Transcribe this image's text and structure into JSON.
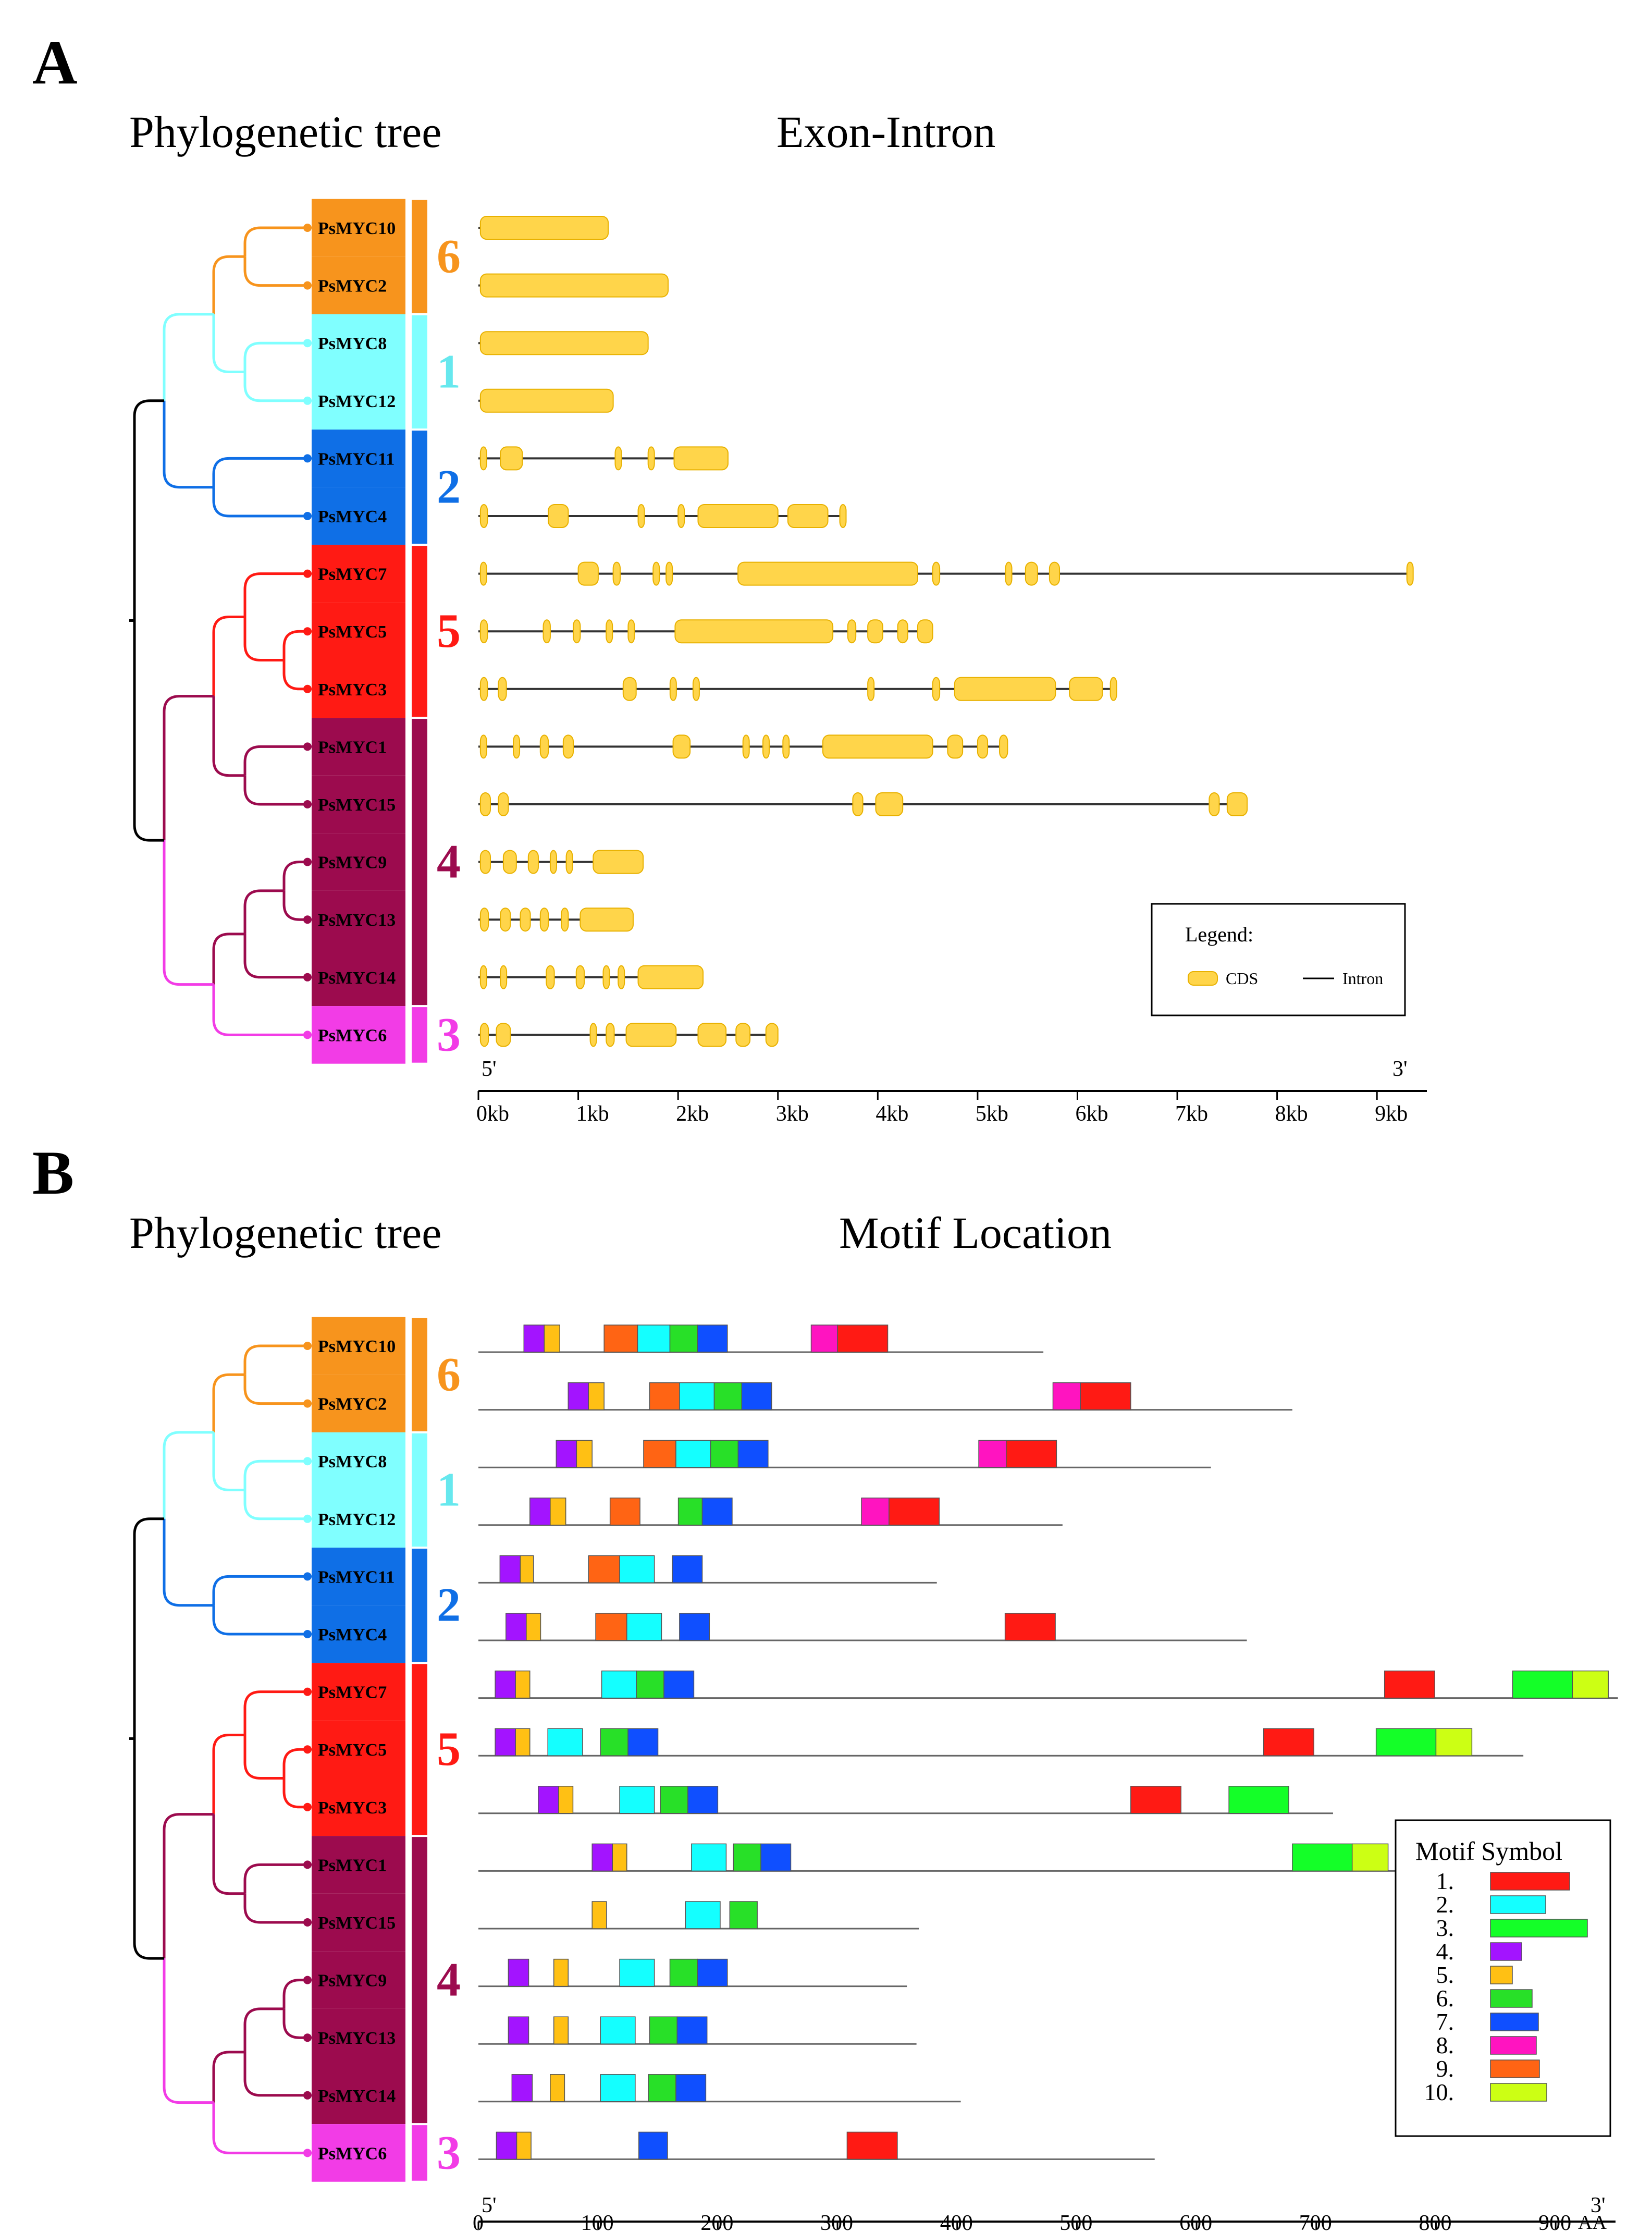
{
  "panel_a": {
    "letter": "A",
    "left_title": "Phylogenetic tree",
    "right_title": "Exon-Intron",
    "legend_title": "Legend:",
    "legend_cds": "CDS",
    "legend_intron": "Intron",
    "end5": "5'",
    "end3": "3'",
    "axis_ticks": [
      "0kb",
      "1kb",
      "2kb",
      "3kb",
      "4kb",
      "5kb",
      "6kb",
      "7kb",
      "8kb",
      "9kb"
    ],
    "axis_max_kb": 9.5
  },
  "panel_b": {
    "letter": "B",
    "left_title": "Phylogenetic tree",
    "right_title": "Motif Location",
    "legend_title": "Motif Symbol",
    "end5": "5'",
    "end3": "3'",
    "axis_unit": "AA",
    "axis_ticks": [
      "0",
      "100",
      "200",
      "300",
      "400",
      "500",
      "600",
      "700",
      "800",
      "900"
    ],
    "axis_max_aa": 950
  },
  "genes": [
    "PsMYC10",
    "PsMYC2",
    "PsMYC8",
    "PsMYC12",
    "PsMYC11",
    "PsMYC4",
    "PsMYC7",
    "PsMYC5",
    "PsMYC3",
    "PsMYC1",
    "PsMYC15",
    "PsMYC9",
    "PsMYC13",
    "PsMYC14",
    "PsMYC6"
  ],
  "groups": [
    {
      "label": "6",
      "rows": [
        0,
        1
      ],
      "color": "#f7941d"
    },
    {
      "label": "1",
      "rows": [
        2,
        3
      ],
      "color": "#80ffff",
      "label_color": "#66e8ee"
    },
    {
      "label": "2",
      "rows": [
        4,
        5
      ],
      "color": "#0f6fe6"
    },
    {
      "label": "5",
      "rows": [
        6,
        8
      ],
      "color": "#ff1a14"
    },
    {
      "label": "4",
      "rows": [
        9,
        13
      ],
      "color": "#9c0b4e"
    },
    {
      "label": "3",
      "rows": [
        14,
        14
      ],
      "color": "#f23ce6"
    }
  ],
  "colors": {
    "cds": "#ffd54a",
    "cds_edge": "#e8b100",
    "intron": "#333333",
    "tree_black": "#000000"
  },
  "gene_structures": [
    {
      "gene": "PsMYC10",
      "length": 1.3,
      "exons": [
        [
          0.02,
          1.3
        ]
      ]
    },
    {
      "gene": "PsMYC2",
      "length": 1.9,
      "exons": [
        [
          0.02,
          1.9
        ]
      ]
    },
    {
      "gene": "PsMYC8",
      "length": 1.7,
      "exons": [
        [
          0.02,
          1.7
        ]
      ]
    },
    {
      "gene": "PsMYC12",
      "length": 1.35,
      "exons": [
        [
          0.02,
          1.35
        ]
      ]
    },
    {
      "gene": "PsMYC11",
      "length": 2.5,
      "exons": [
        [
          0.02,
          0.08
        ],
        [
          0.22,
          0.44
        ],
        [
          1.37,
          1.42
        ],
        [
          1.7,
          1.75
        ],
        [
          1.96,
          2.5
        ]
      ]
    },
    {
      "gene": "PsMYC4",
      "length": 3.65,
      "exons": [
        [
          0.02,
          0.09
        ],
        [
          0.7,
          0.9
        ],
        [
          1.6,
          1.66
        ],
        [
          2.0,
          2.05
        ],
        [
          2.2,
          3.0
        ],
        [
          3.1,
          3.5
        ],
        [
          3.62,
          3.65
        ]
      ]
    },
    {
      "gene": "PsMYC7",
      "length": 9.35,
      "exons": [
        [
          0.02,
          0.06
        ],
        [
          1.0,
          1.2
        ],
        [
          1.35,
          1.42
        ],
        [
          1.75,
          1.78
        ],
        [
          1.88,
          1.92
        ],
        [
          2.6,
          4.4
        ],
        [
          4.55,
          4.62
        ],
        [
          5.28,
          5.32
        ],
        [
          5.48,
          5.6
        ],
        [
          5.72,
          5.82
        ],
        [
          9.3,
          9.35
        ]
      ]
    },
    {
      "gene": "PsMYC5",
      "length": 4.55,
      "exons": [
        [
          0.02,
          0.09
        ],
        [
          0.65,
          0.72
        ],
        [
          0.95,
          1.02
        ],
        [
          1.28,
          1.32
        ],
        [
          1.5,
          1.56
        ],
        [
          1.97,
          3.55
        ],
        [
          3.7,
          3.78
        ],
        [
          3.9,
          4.05
        ],
        [
          4.2,
          4.3
        ],
        [
          4.4,
          4.55
        ]
      ]
    },
    {
      "gene": "PsMYC3",
      "length": 6.35,
      "exons": [
        [
          0.02,
          0.09
        ],
        [
          0.2,
          0.28
        ],
        [
          1.45,
          1.58
        ],
        [
          1.92,
          1.97
        ],
        [
          2.15,
          2.2
        ],
        [
          3.9,
          3.95
        ],
        [
          4.55,
          4.62
        ],
        [
          4.77,
          5.78
        ],
        [
          5.92,
          6.25
        ],
        [
          6.33,
          6.35
        ]
      ]
    },
    {
      "gene": "PsMYC1",
      "length": 5.3,
      "exons": [
        [
          0.02,
          0.06
        ],
        [
          0.35,
          0.4
        ],
        [
          0.62,
          0.7
        ],
        [
          0.85,
          0.95
        ],
        [
          1.95,
          2.12
        ],
        [
          2.65,
          2.7
        ],
        [
          2.85,
          2.9
        ],
        [
          3.05,
          3.1
        ],
        [
          3.45,
          4.55
        ],
        [
          4.7,
          4.85
        ],
        [
          5.0,
          5.1
        ],
        [
          5.22,
          5.3
        ]
      ]
    },
    {
      "gene": "PsMYC15",
      "length": 7.7,
      "exons": [
        [
          0.02,
          0.12
        ],
        [
          0.2,
          0.3
        ],
        [
          3.75,
          3.85
        ],
        [
          3.98,
          4.25
        ],
        [
          7.32,
          7.42
        ],
        [
          7.5,
          7.7
        ]
      ]
    },
    {
      "gene": "PsMYC9",
      "length": 1.65,
      "exons": [
        [
          0.02,
          0.12
        ],
        [
          0.25,
          0.38
        ],
        [
          0.5,
          0.6
        ],
        [
          0.72,
          0.78
        ],
        [
          0.88,
          0.94
        ],
        [
          1.15,
          1.65
        ]
      ]
    },
    {
      "gene": "PsMYC13",
      "length": 1.55,
      "exons": [
        [
          0.02,
          0.1
        ],
        [
          0.22,
          0.32
        ],
        [
          0.42,
          0.52
        ],
        [
          0.62,
          0.7
        ],
        [
          0.83,
          0.9
        ],
        [
          1.02,
          1.55
        ]
      ]
    },
    {
      "gene": "PsMYC14",
      "length": 2.25,
      "exons": [
        [
          0.02,
          0.08
        ],
        [
          0.22,
          0.28
        ],
        [
          0.68,
          0.76
        ],
        [
          0.98,
          1.06
        ],
        [
          1.25,
          1.3
        ],
        [
          1.4,
          1.46
        ],
        [
          1.6,
          2.25
        ]
      ]
    },
    {
      "gene": "PsMYC6",
      "length": 3.0,
      "exons": [
        [
          0.02,
          0.1
        ],
        [
          0.18,
          0.32
        ],
        [
          1.12,
          1.18
        ],
        [
          1.28,
          1.36
        ],
        [
          1.48,
          1.98
        ],
        [
          2.2,
          2.48
        ],
        [
          2.58,
          2.72
        ],
        [
          2.88,
          3.0
        ]
      ]
    }
  ],
  "motif_colors": [
    "#ff1a14",
    "#14ffff",
    "#14ff28",
    "#a314ff",
    "#ffc014",
    "#28e028",
    "#0f4fff",
    "#ff14c0",
    "#ff6414",
    "#ccff14"
  ],
  "motif_legend": [
    {
      "label": "1.",
      "motif": 1
    },
    {
      "label": "2.",
      "motif": 2
    },
    {
      "label": "3.",
      "motif": 3
    },
    {
      "label": "4.",
      "motif": 4
    },
    {
      "label": "5.",
      "motif": 5
    },
    {
      "label": "6.",
      "motif": 6
    },
    {
      "label": "7.",
      "motif": 7
    },
    {
      "label": "8.",
      "motif": 8
    },
    {
      "label": "9.",
      "motif": 9
    },
    {
      "label": "10.",
      "motif": 10
    }
  ],
  "motif_layout": [
    {
      "gene": "PsMYC10",
      "length": 472,
      "motifs": [
        [
          4,
          38,
          55
        ],
        [
          5,
          55,
          68
        ],
        [
          9,
          105,
          133
        ],
        [
          2,
          133,
          160
        ],
        [
          6,
          160,
          183
        ],
        [
          7,
          183,
          208
        ],
        [
          8,
          278,
          300
        ],
        [
          1,
          300,
          342
        ]
      ]
    },
    {
      "gene": "PsMYC2",
      "length": 680,
      "motifs": [
        [
          4,
          75,
          92
        ],
        [
          5,
          92,
          105
        ],
        [
          9,
          143,
          168
        ],
        [
          2,
          168,
          197
        ],
        [
          6,
          197,
          220
        ],
        [
          7,
          220,
          245
        ],
        [
          8,
          480,
          503
        ],
        [
          1,
          503,
          545
        ]
      ]
    },
    {
      "gene": "PsMYC8",
      "length": 612,
      "motifs": [
        [
          4,
          65,
          82
        ],
        [
          5,
          82,
          95
        ],
        [
          9,
          138,
          165
        ],
        [
          2,
          165,
          194
        ],
        [
          6,
          194,
          217
        ],
        [
          7,
          217,
          242
        ],
        [
          8,
          418,
          441
        ],
        [
          1,
          441,
          483
        ]
      ]
    },
    {
      "gene": "PsMYC12",
      "length": 488,
      "motifs": [
        [
          4,
          43,
          60
        ],
        [
          5,
          60,
          73
        ],
        [
          9,
          110,
          135
        ],
        [
          6,
          167,
          187
        ],
        [
          7,
          187,
          212
        ],
        [
          8,
          320,
          343
        ],
        [
          1,
          343,
          385
        ]
      ]
    },
    {
      "gene": "PsMYC11",
      "length": 383,
      "motifs": [
        [
          4,
          18,
          35
        ],
        [
          5,
          35,
          46
        ],
        [
          9,
          92,
          118
        ],
        [
          2,
          118,
          147
        ],
        [
          7,
          162,
          187
        ]
      ]
    },
    {
      "gene": "PsMYC4",
      "length": 642,
      "motifs": [
        [
          4,
          23,
          40
        ],
        [
          5,
          40,
          52
        ],
        [
          9,
          98,
          124
        ],
        [
          2,
          124,
          153
        ],
        [
          7,
          168,
          193
        ],
        [
          1,
          440,
          482
        ]
      ]
    },
    {
      "gene": "PsMYC7",
      "length": 952,
      "motifs": [
        [
          4,
          14,
          31
        ],
        [
          5,
          31,
          43
        ],
        [
          2,
          103,
          132
        ],
        [
          6,
          132,
          155
        ],
        [
          7,
          155,
          180
        ],
        [
          1,
          757,
          799
        ],
        [
          3,
          864,
          914
        ],
        [
          10,
          914,
          944
        ]
      ]
    },
    {
      "gene": "PsMYC5",
      "length": 873,
      "motifs": [
        [
          4,
          14,
          31
        ],
        [
          5,
          31,
          43
        ],
        [
          2,
          58,
          87
        ],
        [
          6,
          102,
          125
        ],
        [
          7,
          125,
          150
        ],
        [
          1,
          656,
          698
        ],
        [
          3,
          750,
          800
        ],
        [
          10,
          800,
          830
        ]
      ]
    },
    {
      "gene": "PsMYC3",
      "length": 714,
      "motifs": [
        [
          4,
          50,
          67
        ],
        [
          5,
          67,
          79
        ],
        [
          2,
          118,
          147
        ],
        [
          6,
          152,
          175
        ],
        [
          7,
          175,
          200
        ],
        [
          1,
          545,
          587
        ],
        [
          3,
          627,
          677
        ]
      ]
    },
    {
      "gene": "PsMYC1",
      "length": 770,
      "motifs": [
        [
          4,
          95,
          112
        ],
        [
          5,
          112,
          124
        ],
        [
          2,
          178,
          207
        ],
        [
          6,
          213,
          236
        ],
        [
          7,
          236,
          261
        ],
        [
          3,
          680,
          730
        ],
        [
          10,
          730,
          760
        ]
      ]
    },
    {
      "gene": "PsMYC15",
      "length": 368,
      "motifs": [
        [
          5,
          95,
          107
        ],
        [
          2,
          173,
          202
        ],
        [
          6,
          210,
          233
        ]
      ]
    },
    {
      "gene": "PsMYC9",
      "length": 358,
      "motifs": [
        [
          4,
          25,
          42
        ],
        [
          5,
          63,
          75
        ],
        [
          2,
          118,
          147
        ],
        [
          6,
          160,
          183
        ],
        [
          7,
          183,
          208
        ]
      ]
    },
    {
      "gene": "PsMYC13",
      "length": 366,
      "motifs": [
        [
          4,
          25,
          42
        ],
        [
          5,
          63,
          75
        ],
        [
          2,
          102,
          131
        ],
        [
          6,
          143,
          166
        ],
        [
          7,
          166,
          191
        ]
      ]
    },
    {
      "gene": "PsMYC14",
      "length": 403,
      "motifs": [
        [
          4,
          28,
          45
        ],
        [
          5,
          60,
          72
        ],
        [
          2,
          102,
          131
        ],
        [
          6,
          142,
          165
        ],
        [
          7,
          165,
          190
        ]
      ]
    },
    {
      "gene": "PsMYC6",
      "length": 565,
      "motifs": [
        [
          4,
          15,
          32
        ],
        [
          5,
          32,
          44
        ],
        [
          7,
          134,
          158
        ],
        [
          1,
          308,
          350
        ]
      ]
    }
  ]
}
